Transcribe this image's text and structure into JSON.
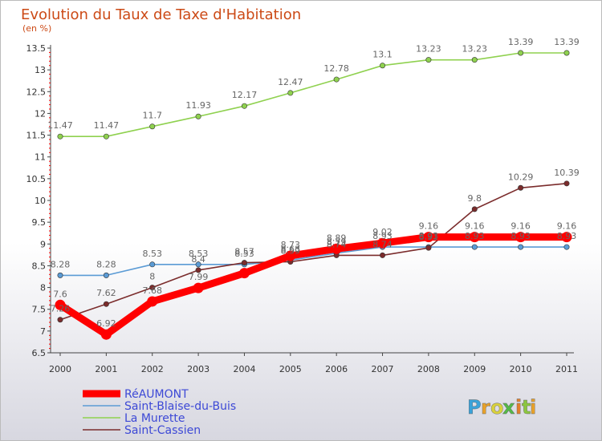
{
  "colors": {
    "background_top": "#ffffff",
    "background_bottom": "#d7d7e0",
    "axis": "#444444",
    "tick_red": "#ff0000",
    "title": "#cc4a16",
    "legend_text": "#3d49d6",
    "data_label": "#666666",
    "logo_p": "#3aa3da",
    "logo_r": "#e8a129",
    "logo_o": "#d9d13c",
    "logo_x": "#55b947",
    "logo_i": "#e27f2b",
    "logo_t": "#8cc63f",
    "logo_i2": "#e8a129"
  },
  "logo": {
    "letters": [
      "P",
      "r",
      "o",
      "x",
      "i",
      "t",
      "i"
    ]
  },
  "chart_data": {
    "type": "line",
    "title": "Evolution du Taux de Taxe d'Habitation",
    "subtitle": "(en %)",
    "xlabel": "",
    "ylabel": "",
    "x": [
      "2000",
      "2001",
      "2002",
      "2003",
      "2004",
      "2005",
      "2006",
      "2007",
      "2008",
      "2009",
      "2010",
      "2011"
    ],
    "ylim": [
      6.5,
      13.5
    ],
    "yticks": [
      "6.5",
      "7",
      "7.5",
      "8",
      "8.5",
      "9",
      "9.5",
      "10",
      "10.5",
      "11",
      "11.5",
      "12",
      "12.5",
      "13",
      "13.5"
    ],
    "grid": false,
    "legend": "bottom-left",
    "series": [
      {
        "name": "RéAUMONT",
        "color": "#ff0000",
        "style": "thick",
        "values": [
          7.6,
          6.92,
          7.68,
          7.99,
          8.33,
          8.73,
          8.89,
          9.02,
          9.16,
          9.16,
          9.16,
          9.16
        ],
        "labels": [
          "7.6",
          "6.92",
          "7.68",
          "7.99",
          "",
          "8.73",
          "8.89",
          "9.02",
          "9.16",
          "9.16",
          "9.16",
          "9.16"
        ]
      },
      {
        "name": "Saint-Blaise-du-Buis",
        "color": "#5b9bd5",
        "style": "thin",
        "values": [
          8.28,
          8.28,
          8.53,
          8.53,
          8.53,
          8.63,
          8.79,
          8.93,
          8.93,
          8.93,
          8.93,
          8.93
        ],
        "labels": [
          "8.28",
          "8.28",
          "8.53",
          "8.53",
          "8.53",
          "8.63",
          "8.79",
          "8.93",
          "8.93",
          "8.93",
          "8.93",
          "8.93"
        ]
      },
      {
        "name": "La Murette",
        "color": "#8fd14f",
        "style": "thin",
        "values": [
          11.47,
          11.47,
          11.7,
          11.93,
          12.17,
          12.47,
          12.78,
          13.1,
          13.23,
          13.23,
          13.39,
          13.39
        ],
        "labels": [
          "11.47",
          "11.47",
          "11.7",
          "11.93",
          "12.17",
          "12.47",
          "12.78",
          "13.1",
          "13.23",
          "13.23",
          "13.39",
          "13.39"
        ]
      },
      {
        "name": "Saint-Cassien",
        "color": "#7b2c2c",
        "style": "thin",
        "values": [
          7.26,
          7.62,
          8.0,
          8.4,
          8.57,
          8.59,
          8.74,
          8.74,
          8.91,
          9.8,
          10.29,
          10.39
        ],
        "labels": [
          "7.26",
          "7.62",
          "8",
          "8.4",
          "8.57",
          "8.59",
          "8.74",
          "8.74",
          "8.91",
          "9.8",
          "10.29",
          "10.39"
        ]
      }
    ]
  }
}
